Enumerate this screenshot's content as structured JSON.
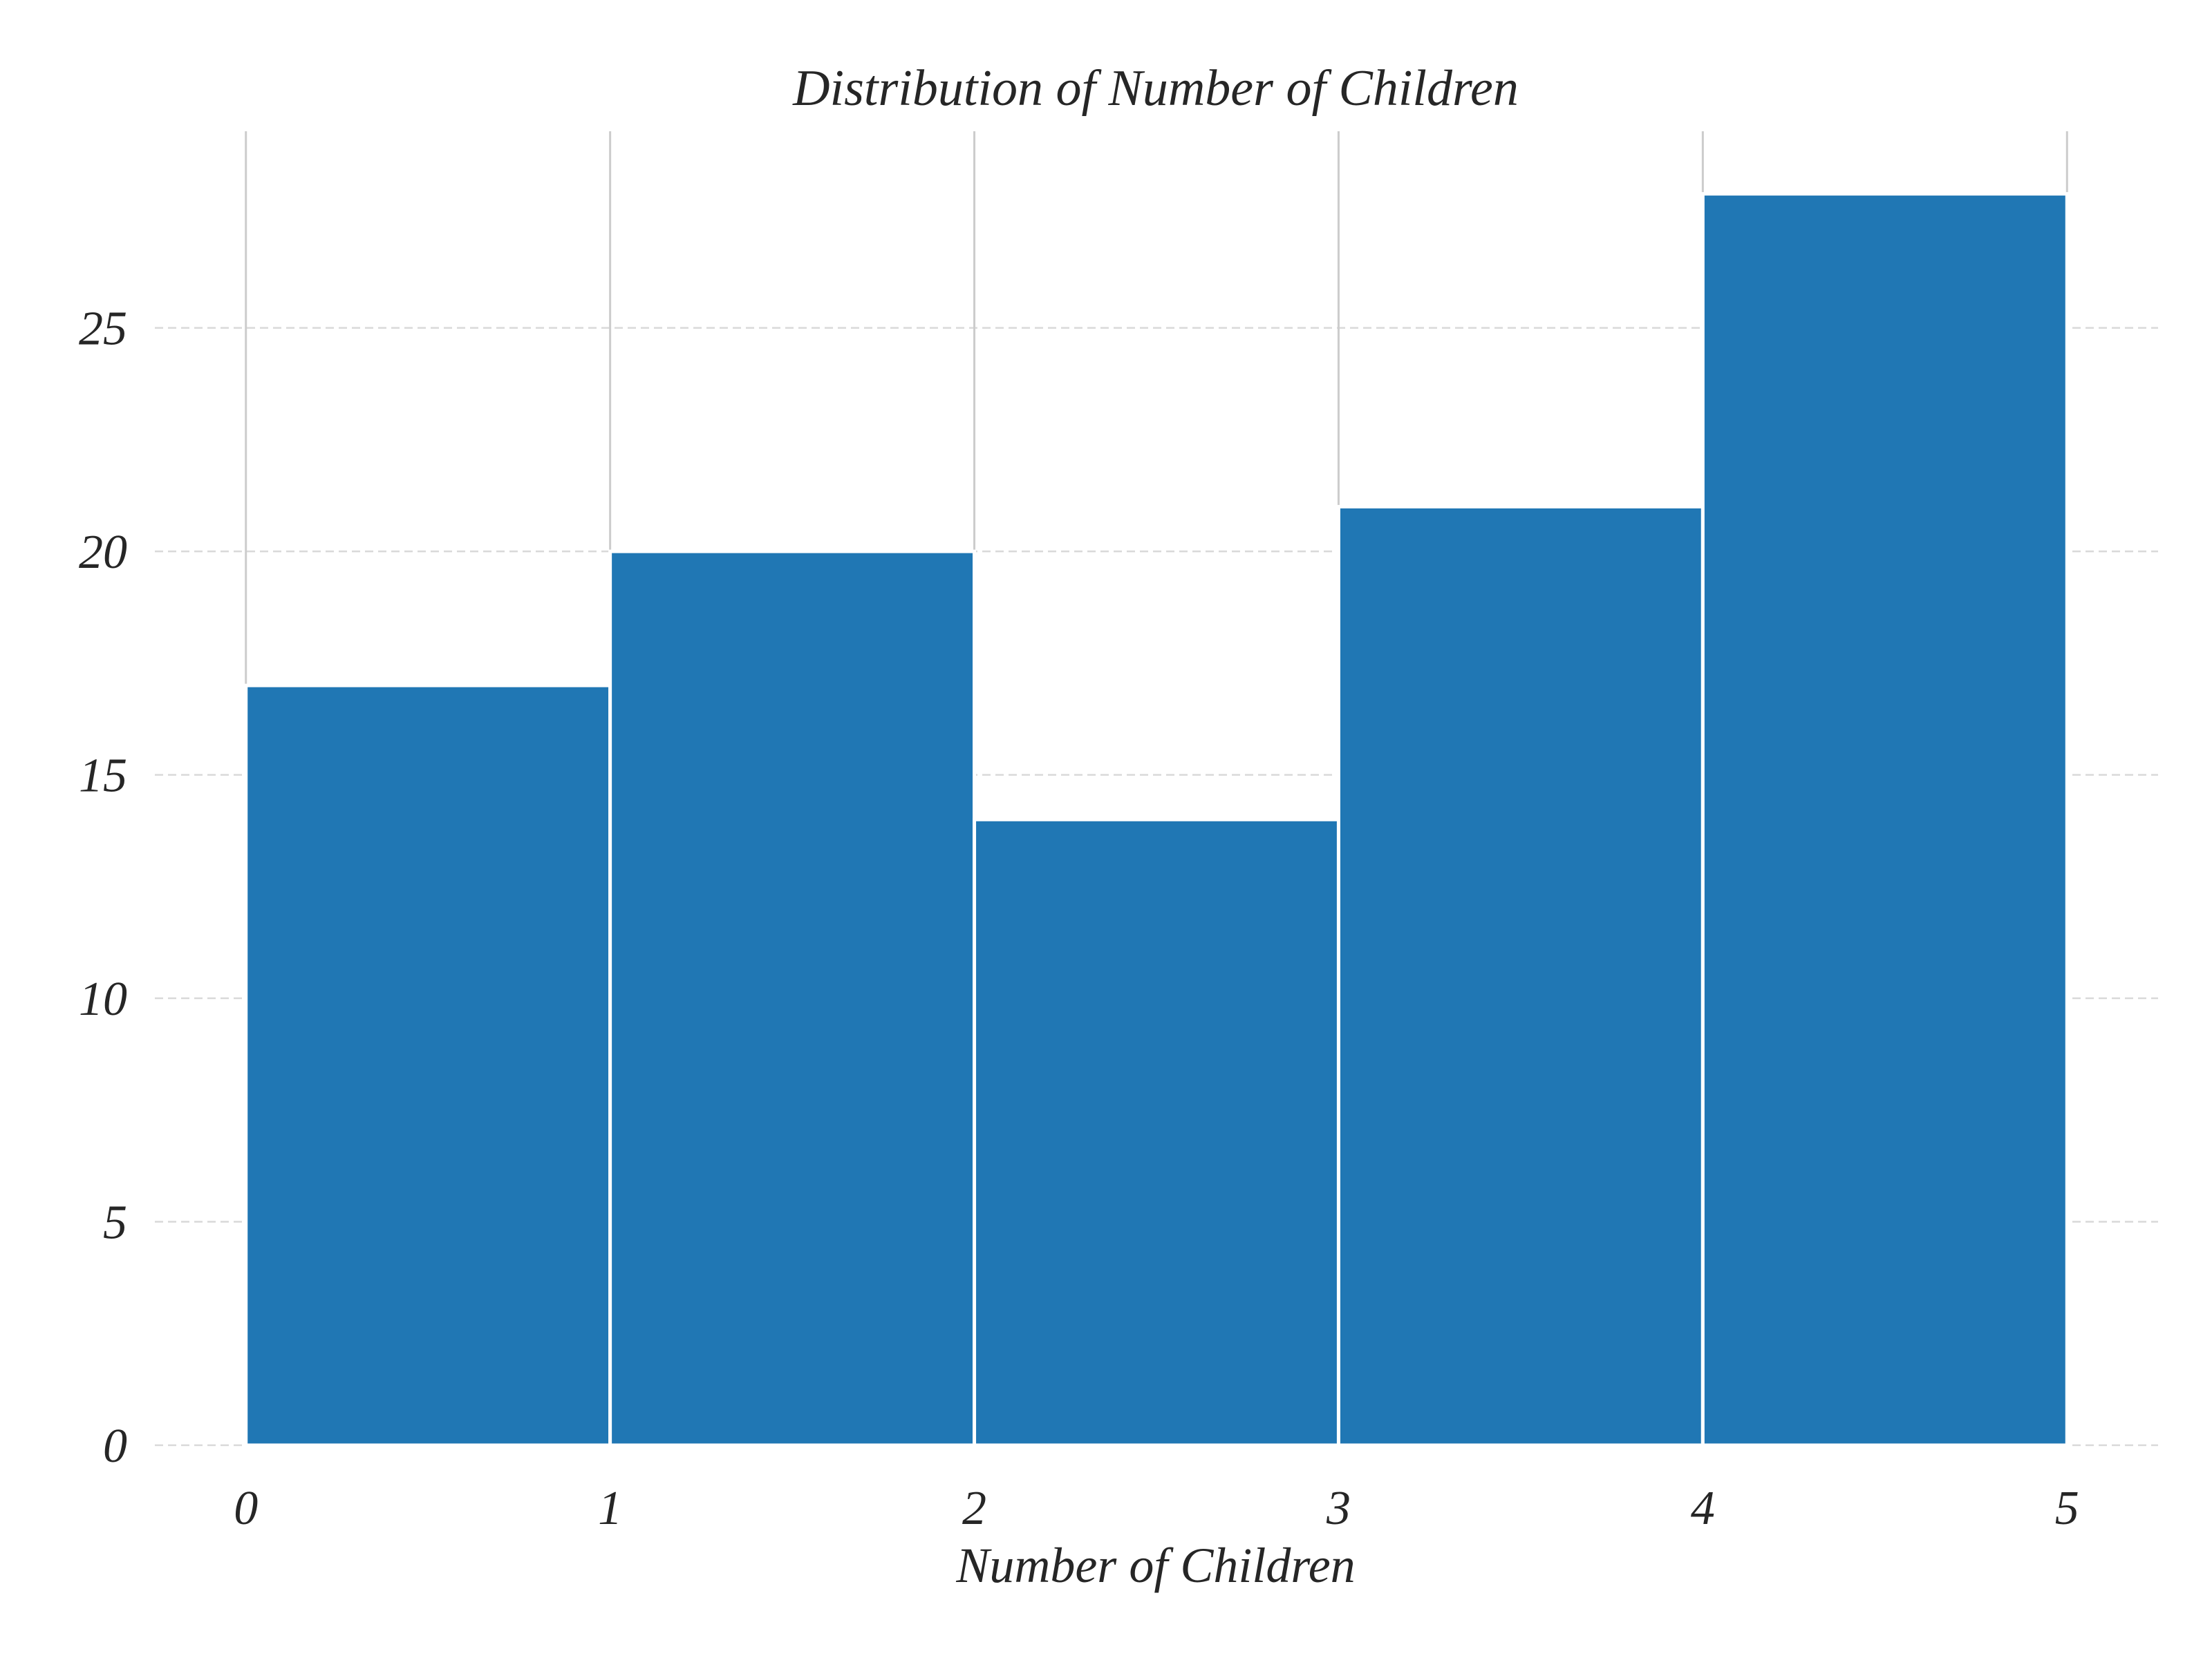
{
  "chart_data": {
    "type": "bar",
    "title": "Distribution of Number of Children",
    "xlabel": "Number of Children",
    "ylabel": "",
    "bin_edges": [
      0,
      1,
      2,
      3,
      4,
      5
    ],
    "values": [
      17,
      20,
      14,
      21,
      28
    ],
    "x_ticks": [
      0,
      1,
      2,
      3,
      4,
      5
    ],
    "y_ticks": [
      0,
      5,
      10,
      15,
      20,
      25
    ],
    "xlim": [
      -0.25,
      5.25
    ],
    "ylim": [
      0,
      29.4
    ],
    "grid_y": "dashed",
    "grid_x": "solid",
    "bar_color": "#2077b4",
    "legend": "none"
  }
}
